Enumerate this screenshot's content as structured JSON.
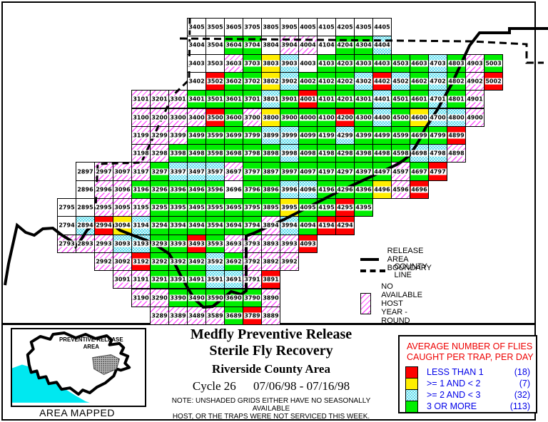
{
  "colors": {
    "green": "#00ee00",
    "red": "#ff0000",
    "yellow": "#ffee00",
    "cyan_dot": "#3fd2e6",
    "hatch_line": "#ff55ff",
    "ocean": "#00e8f0",
    "legend_title_red": "#ee0000",
    "legend_text_blue": "#0000e8"
  },
  "map_grid": {
    "cell_colors": {
      "W": "#ffffff",
      "G": "#00ee00",
      "R": "#ff0000",
      "Y": "#ffee00",
      "C": "cyan-dither",
      "H": "magenta-hatch"
    },
    "rows": [
      [
        "3405:W",
        "3505:W",
        "3605:W",
        "3705:W",
        "3805:W",
        "3905:W",
        "4005:W",
        "4105:W",
        "4205:W",
        "4305:W",
        "4405:W"
      ],
      [
        "3404:W",
        "3504:W",
        "3604:G",
        "3704:G",
        "3804:W",
        "3904:H",
        "4004:H",
        "4104:W",
        "4204:G",
        "4304:G",
        "4404:C"
      ],
      [
        "3403:W",
        "3503:W",
        "3603:H",
        "3703:G",
        "3803:Y",
        "3903:C",
        "4003:W",
        "4103:G",
        "4203:G",
        "4303:G",
        "4403:G",
        "4503:G",
        "4603:G",
        "4703:C",
        "4803:G",
        "4903:H",
        "5003:G"
      ],
      [
        "3402:W",
        "3502:R",
        "3602:G",
        "3702:G",
        "3802:Y",
        "3902:C",
        "4002:G",
        "4102:G",
        "4202:G",
        "4302:C",
        "4402:R",
        "4502:C",
        "4602:G",
        "4702:C",
        "4802:G",
        "4902:H",
        "5002:R"
      ],
      [
        "3101:H",
        "3201:H",
        "3301:H",
        "3401:G",
        "3501:G",
        "3601:G",
        "3701:G",
        "3801:C",
        "3901:G",
        "4001:R",
        "4101:G",
        "4201:G",
        "4301:G",
        "4401:C",
        "4501:G",
        "4601:G",
        "4701:C",
        "4801:G",
        "4901:H"
      ],
      [
        "3100:H",
        "3200:H",
        "3300:H",
        "3400:H",
        "3500:R",
        "3600:G",
        "3700:H",
        "3800:Y",
        "3900:G",
        "4000:G",
        "4100:G",
        "4200:R",
        "4300:G",
        "4400:C",
        "4500:G",
        "4600:Y",
        "4700:C",
        "4800:C",
        "4900:H"
      ],
      [
        "3199:H",
        "3299:H",
        "3399:H",
        "3499:G",
        "3599:G",
        "3699:G",
        "3799:G",
        "3899:C",
        "3999:C",
        "4099:G",
        "4199:G",
        "4299:C",
        "4399:G",
        "4499:G",
        "4599:G",
        "4699:G",
        "4799:G",
        "4899:R"
      ],
      [
        "3198:H",
        "3298:H",
        "3398:G",
        "3498:G",
        "3598:G",
        "3698:G",
        "3798:G",
        "3898:G",
        "3998:C",
        "4098:G",
        "4198:G",
        "4298:G",
        "4398:G",
        "4498:G",
        "4598:G",
        "4698:C",
        "4798:C",
        "4898:H"
      ],
      [
        "2897:W",
        "2997:H",
        "3097:H",
        "3197:H",
        "3297:G",
        "3397:C",
        "3497:C",
        "3597:C",
        "3697:H",
        "3797:G",
        "3897:G",
        "3997:G",
        "4097:G",
        "4197:G",
        "4297:G",
        "4397:G",
        "4497:G",
        "4597:H",
        "4697:G",
        "4797:R"
      ],
      [
        "2896:W",
        "2996:H",
        "3096:H",
        "3196:G",
        "3296:G",
        "3396:G",
        "3496:G",
        "3596:G",
        "3696:W",
        "3796:G",
        "3896:G",
        "3996:C",
        "4096:C",
        "4196:G",
        "4296:G",
        "4396:G",
        "4496:Y",
        "4596:H",
        "4696:R"
      ],
      [
        "2795:W",
        "2895:W",
        "2995:H",
        "3095:H",
        "3195:H",
        "3295:G",
        "3395:G",
        "3495:G",
        "3595:G",
        "3695:G",
        "3795:G",
        "3895:G",
        "3995:Y",
        "4095:G",
        "4195:G",
        "4295:R",
        "4395:G"
      ],
      [
        "2794:W",
        "2894:C",
        "2994:R",
        "3094:Y",
        "3194:C",
        "3294:G",
        "3394:G",
        "3494:G",
        "3594:G",
        "3694:G",
        "3794:G",
        "3894:H",
        "3994:C",
        "4094:G",
        "4194:R",
        "4294:R"
      ],
      [
        "2793:H",
        "2893:H",
        "2993:H",
        "3093:C",
        "3193:C",
        "3293:G",
        "3393:G",
        "3493:R",
        "3593:G",
        "3693:H",
        "3793:H",
        "3893:H",
        "3993:H",
        "4093:R"
      ],
      [
        "2992:H",
        "3092:H",
        "3192:R",
        "3292:G",
        "3392:G",
        "3492:G",
        "3592:C",
        "3692:G",
        "3792:H",
        "3892:H",
        "3992:H"
      ],
      [
        "3091:H",
        "3191:H",
        "3291:G",
        "3391:G",
        "3491:G",
        "3591:C",
        "3691:C",
        "3791:H",
        "3891:R"
      ],
      [
        "3190:H",
        "3290:H",
        "3390:G",
        "3490:G",
        "3590:G",
        "3690:G",
        "3790:G",
        "3890:H"
      ],
      [
        "3289:H",
        "3389:H",
        "3489:H",
        "3589:H",
        "3689:G",
        "3789:R",
        "3889:H"
      ]
    ]
  },
  "map_legend": {
    "boundary_label": "RELEASE AREA BOUNDARY",
    "county_label": "COUNTY LINE",
    "nohost_line1": "NO AVAILABLE HOST",
    "nohost_line2": "YEAR - ROUND"
  },
  "inset": {
    "label_line1": "PREVENTIVE RELEASE",
    "label_line2": "AREA",
    "caption": "AREA MAPPED"
  },
  "title": {
    "line1": "Medfly Preventive Release",
    "line2": "Sterile Fly Recovery",
    "line3": "Riverside County Area",
    "cycle_label": "Cycle 26",
    "date_range": "07/06/98 - 07/16/98",
    "note_line1": "NOTE: UNSHADED GRIDS EITHER HAVE NO SEASONALLY AVAILABLE",
    "note_line2": "HOST, OR THE TRAPS WERE NOT SERVICED THIS WEEK."
  },
  "legend": {
    "title_line1": "AVERAGE NUMBER OF FLIES",
    "title_line2": "CAUGHT PER TRAP, PER DAY",
    "rows": [
      {
        "color": "red",
        "label": "LESS THAN 1",
        "count": "(18)"
      },
      {
        "color": "yellow",
        "label": ">= 1 AND < 2",
        "count": "(7)"
      },
      {
        "color": "cyan",
        "label": ">= 2 AND < 3",
        "count": "(32)"
      },
      {
        "color": "green",
        "label": "3 OR MORE",
        "count": "(113)"
      }
    ]
  }
}
